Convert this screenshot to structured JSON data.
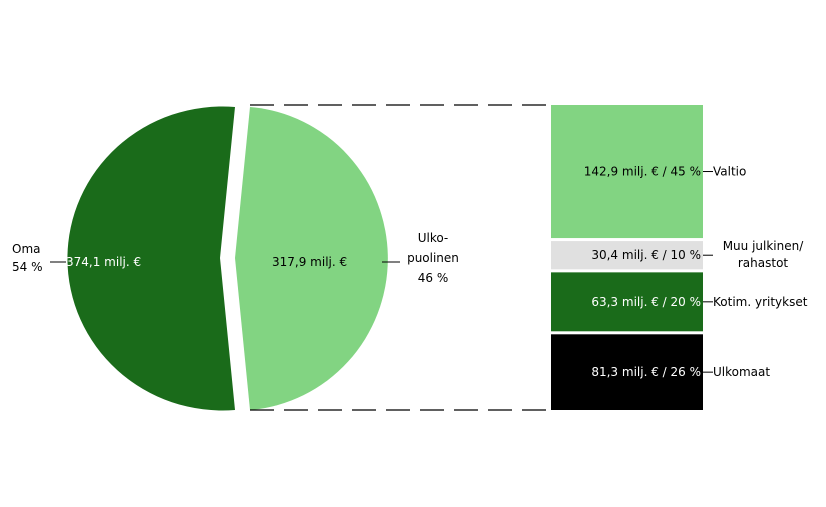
{
  "chart_data": {
    "type": "pie",
    "pie": {
      "slices": [
        {
          "label_line1": "Oma",
          "label_line2": "54 %",
          "value": 374.1,
          "value_text": "374,1 milj. €",
          "percent": 54,
          "color": "#1a6b1a"
        },
        {
          "label_line1": "Ulko-",
          "label_line2": "puolinen",
          "label_line3": "46 %",
          "value": 317.9,
          "value_text": "317,9 milj. €",
          "percent": 46,
          "color": "#82d482"
        }
      ]
    },
    "breakdown": {
      "type": "stacked-bar",
      "segments": [
        {
          "label": "Valtio",
          "label_line2": "",
          "value": 142.9,
          "percent": 45,
          "text": "142,9 milj. € /  45 %",
          "color": "#82d482",
          "text_color": "#000000"
        },
        {
          "label": "Muu julkinen/",
          "label_line2": "rahastot",
          "value": 30.4,
          "percent": 10,
          "text": "30,4 milj. € /  10 %",
          "color": "#e0e0e0",
          "text_color": "#000000"
        },
        {
          "label": "Kotim. yritykset",
          "label_line2": "",
          "value": 63.3,
          "percent": 20,
          "text": "63,3 milj. € /  20 %",
          "color": "#1a6b1a",
          "text_color": "#ffffff"
        },
        {
          "label": "Ulkomaat",
          "label_line2": "",
          "value": 81.3,
          "percent": 26,
          "text": "81,3 milj. € /  26 %",
          "color": "#000000",
          "text_color": "#ffffff"
        }
      ]
    }
  }
}
